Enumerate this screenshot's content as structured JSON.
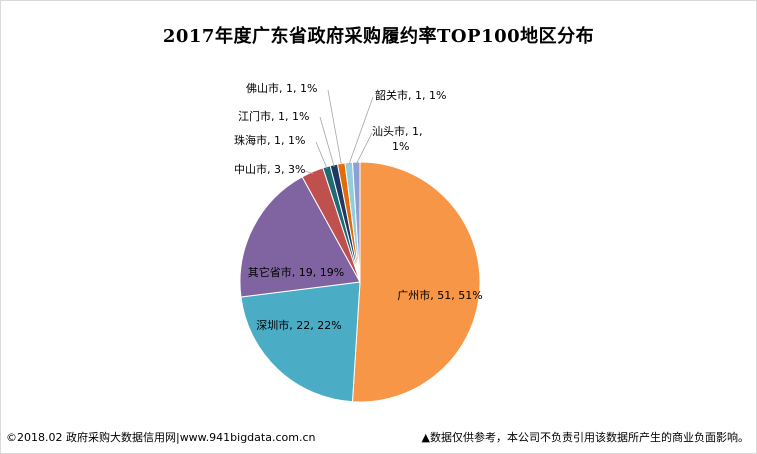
{
  "title": "2017年度广东省政府采购履约率TOP100地区分布",
  "footer": {
    "left": "©2018.02 政府采购大数据信用网|www.941bigdata.com.cn",
    "right": "▲数据仅供参考，本公司不负责引用该数据所产生的商业负面影响。"
  },
  "chart_data": {
    "type": "pie",
    "title": "2017年度广东省政府采购履约率TOP100地区分布",
    "categories": [
      "广州市",
      "深圳市",
      "其它省市",
      "中山市",
      "珠海市",
      "江门市",
      "佛山市",
      "韶关市",
      "汕头市"
    ],
    "values": [
      51,
      22,
      19,
      3,
      1,
      1,
      1,
      1,
      1
    ],
    "percents": [
      "51%",
      "22%",
      "19%",
      "3%",
      "1%",
      "1%",
      "1%",
      "1%",
      "1%"
    ],
    "labels": [
      "广州市, 51, 51%",
      "深圳市, 22, 22%",
      "其它省市, 19, 19%",
      "中山市, 3, 3%",
      "珠海市, 1, 1%",
      "江门市, 1, 1%",
      "佛山市, 1, 1%",
      "韶关市, 1, 1%",
      "汕头市, 1, 1%"
    ],
    "colors": [
      "#f79646",
      "#4bacc6",
      "#8064a2",
      "#c0504d",
      "#1f6b74",
      "#1f3864",
      "#e26b0a",
      "#93cddd",
      "#8e9fd4"
    ],
    "legend": "none",
    "start": "12 o'clock, clockwise"
  }
}
